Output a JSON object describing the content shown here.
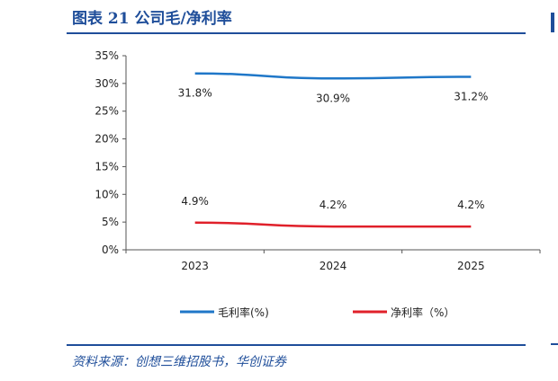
{
  "header": {
    "title": "图表 21   公司毛/净利率"
  },
  "footer": {
    "source": "资料来源：创想三维招股书，华创证券"
  },
  "colors": {
    "accent": "#1f4e9a",
    "gross": "#1f77c8",
    "net": "#e0202a"
  },
  "chart_data": {
    "type": "line",
    "x": [
      "2023",
      "2024",
      "2025"
    ],
    "ylim": [
      0,
      35
    ],
    "yticks": [
      "0%",
      "5%",
      "10%",
      "15%",
      "20%",
      "25%",
      "30%",
      "35%"
    ],
    "grid": false,
    "legend_position": "bottom",
    "series": [
      {
        "name": "毛利率(%)",
        "values": [
          31.8,
          30.9,
          31.2
        ],
        "labels": [
          "31.8%",
          "30.9%",
          "31.2%"
        ],
        "color": "#1f77c8"
      },
      {
        "name": "净利率（%）",
        "values": [
          4.9,
          4.2,
          4.2
        ],
        "labels": [
          "4.9%",
          "4.2%",
          "4.2%"
        ],
        "color": "#e0202a"
      }
    ]
  }
}
